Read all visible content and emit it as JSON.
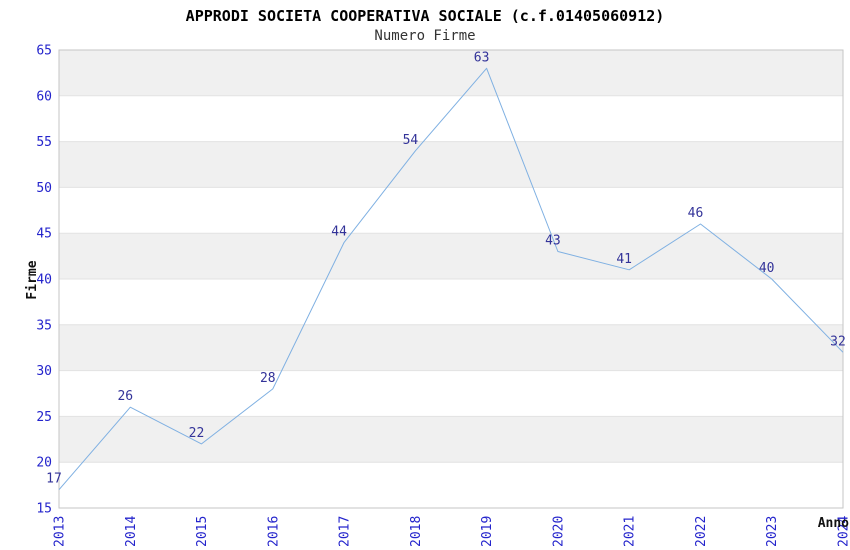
{
  "chart_data": {
    "type": "line",
    "title": "APPRODI SOCIETA COOPERATIVA SOCIALE (c.f.01405060912)",
    "subtitle": "Numero Firme",
    "xlabel": "Anno",
    "ylabel": "Firme",
    "categories": [
      "2013",
      "2014",
      "2015",
      "2016",
      "2017",
      "2018",
      "2019",
      "2020",
      "2021",
      "2022",
      "2023",
      "2024"
    ],
    "values": [
      17,
      26,
      22,
      28,
      44,
      54,
      63,
      43,
      41,
      46,
      40,
      32
    ],
    "ylim": [
      15,
      65
    ],
    "ytick_step": 5,
    "grid": "horizontal-bands-alternating",
    "legend": "none",
    "colors": {
      "line": "#7fb0e2",
      "tick_label": "#2424cc",
      "value_label": "#333399",
      "band_gray": "#f0f0f0",
      "band_white": "#ffffff",
      "gridline": "#e2e2e2",
      "plot_border": "#c6c6c6",
      "axis_title": "#111111",
      "title": "#000000",
      "subtitle": "#333333"
    }
  }
}
